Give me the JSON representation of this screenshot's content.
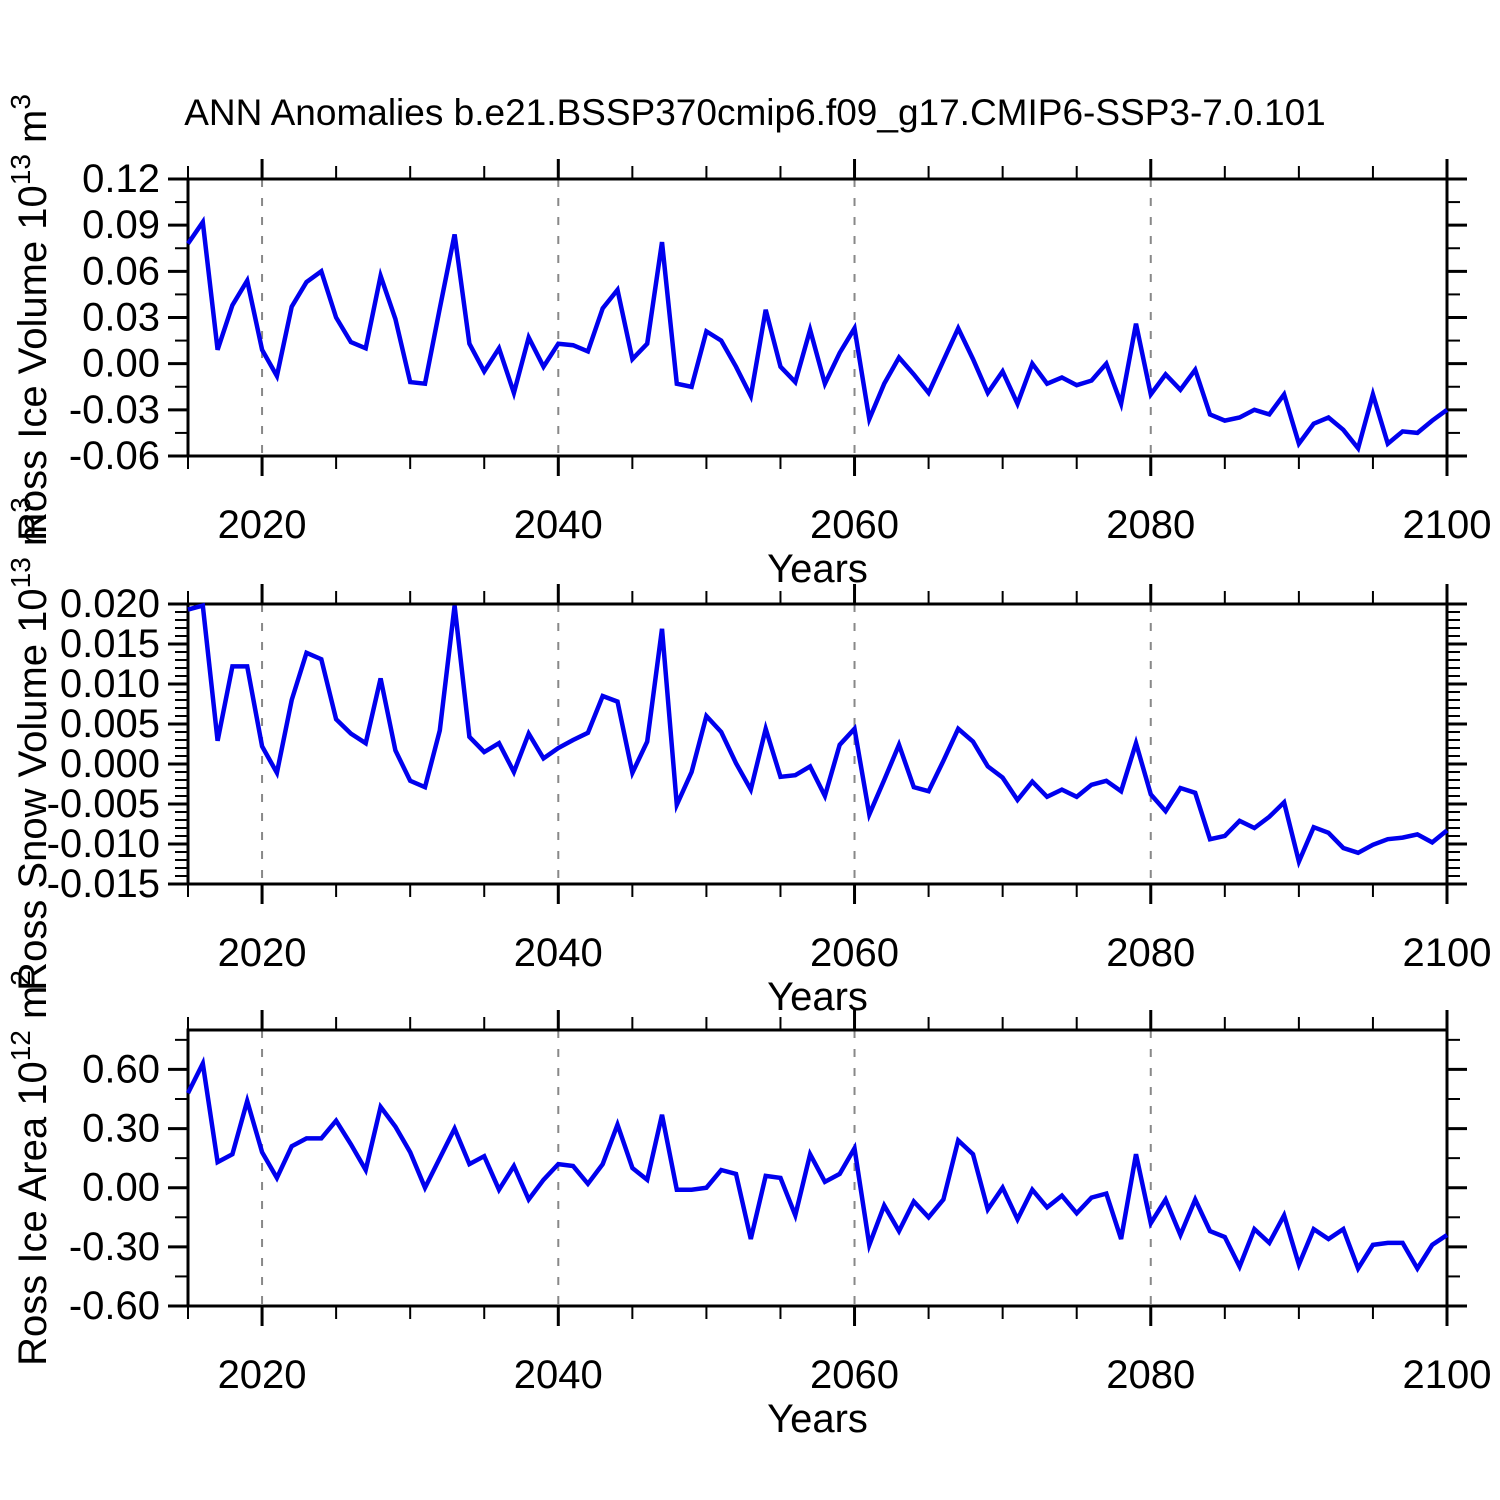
{
  "title": "ANN Anomalies b.e21.BSSP370cmip6.f09_g17.CMIP6-SSP3-7.0.101",
  "colors": {
    "line": "#0000ee",
    "grid": "#888888",
    "frame": "#000000",
    "background": "#ffffff"
  },
  "x_axis": {
    "label": "Years",
    "tick_labels": [
      "2020",
      "2040",
      "2060",
      "2080",
      "2100"
    ],
    "major_ticks": [
      2020,
      2040,
      2060,
      2080,
      2100
    ],
    "minor_step": 5,
    "gridline_years": [
      2020,
      2040,
      2060,
      2080
    ],
    "range": [
      2015,
      2100
    ]
  },
  "chart_data": [
    {
      "type": "line",
      "ylabel": "Ross Ice Volume 10^13 m^3",
      "ylabel_parts": {
        "base": "Ross Ice Volume 10",
        "sup1": "13",
        "mid": " m",
        "sup2": "3"
      },
      "ylim": [
        -0.06,
        0.12
      ],
      "ytick_values": [
        0.12,
        0.09,
        0.06,
        0.03,
        0.0,
        -0.03,
        -0.06
      ],
      "ytick_labels": [
        "0.12",
        "0.09",
        "0.06",
        "0.03",
        "0.00",
        "-0.03",
        "-0.06"
      ],
      "yminor_step": 0.015,
      "xlabel": "Years",
      "x_range": [
        2015,
        2100
      ],
      "x_step": 1,
      "values": [
        0.078,
        0.092,
        0.009,
        0.038,
        0.054,
        0.009,
        -0.008,
        0.037,
        0.053,
        0.06,
        0.03,
        0.014,
        0.01,
        0.057,
        0.029,
        -0.012,
        -0.013,
        0.036,
        0.084,
        0.013,
        -0.005,
        0.01,
        -0.019,
        0.017,
        -0.002,
        0.013,
        0.012,
        0.008,
        0.036,
        0.048,
        0.003,
        0.013,
        0.079,
        -0.013,
        -0.015,
        0.021,
        0.015,
        -0.002,
        -0.021,
        0.035,
        -0.002,
        -0.012,
        0.022,
        -0.013,
        0.007,
        0.023,
        -0.036,
        -0.013,
        0.004,
        -0.007,
        -0.019,
        0.002,
        0.023,
        0.003,
        -0.019,
        -0.005,
        -0.026,
        0.0,
        -0.013,
        -0.009,
        -0.014,
        -0.011,
        0.0,
        -0.026,
        0.026,
        -0.02,
        -0.007,
        -0.017,
        -0.004,
        -0.033,
        -0.037,
        -0.035,
        -0.03,
        -0.033,
        -0.02,
        -0.052,
        -0.039,
        -0.035,
        -0.043,
        -0.055,
        -0.02,
        -0.052,
        -0.044,
        -0.045,
        -0.037,
        -0.03
      ]
    },
    {
      "type": "line",
      "ylabel": "Ross Snow Volume 10^13 m^3",
      "ylabel_parts": {
        "base": "Ross Snow Volume 10",
        "sup1": "13",
        "mid": " m",
        "sup2": "3"
      },
      "ylim": [
        -0.015,
        0.02
      ],
      "ytick_values": [
        0.02,
        0.015,
        0.01,
        0.005,
        0.0,
        -0.005,
        -0.01,
        -0.015
      ],
      "ytick_labels": [
        "0.020",
        "0.015",
        "0.010",
        "0.005",
        "0.000",
        "-0.005",
        "-0.010",
        "-0.015"
      ],
      "yminor_step": 0.001,
      "xlabel": "Years",
      "x_range": [
        2015,
        2100
      ],
      "x_step": 1,
      "values": [
        0.0193,
        0.0198,
        0.0029,
        0.0122,
        0.0122,
        0.0022,
        -0.0011,
        0.008,
        0.0139,
        0.0131,
        0.0056,
        0.0038,
        0.0026,
        0.0107,
        0.0017,
        -0.0021,
        -0.0029,
        0.0042,
        0.0198,
        0.0034,
        0.0015,
        0.0026,
        -0.001,
        0.0038,
        0.0007,
        0.002,
        0.003,
        0.0039,
        0.0085,
        0.0078,
        -0.0011,
        0.0028,
        0.0169,
        -0.0051,
        -0.001,
        0.006,
        0.004,
        0.0001,
        -0.0032,
        0.0044,
        -0.0016,
        -0.0014,
        -0.0003,
        -0.004,
        0.0024,
        0.0044,
        -0.0063,
        -0.002,
        0.0024,
        -0.0029,
        -0.0034,
        0.0004,
        0.0044,
        0.0028,
        -0.0003,
        -0.0017,
        -0.0045,
        -0.0022,
        -0.0041,
        -0.0032,
        -0.0041,
        -0.0026,
        -0.0021,
        -0.0034,
        0.0026,
        -0.0038,
        -0.0059,
        -0.003,
        -0.0036,
        -0.0094,
        -0.009,
        -0.0071,
        -0.008,
        -0.0066,
        -0.0048,
        -0.0122,
        -0.0079,
        -0.0086,
        -0.0105,
        -0.0111,
        -0.0101,
        -0.0094,
        -0.0092,
        -0.0088,
        -0.0098,
        -0.0083
      ]
    },
    {
      "type": "line",
      "ylabel": "Ross Ice Area 10^12 m^2",
      "ylabel_parts": {
        "base": "Ross Ice Area 10",
        "sup1": "12",
        "mid": " m",
        "sup2": "2"
      },
      "ylim": [
        -0.6,
        0.8
      ],
      "ytick_values": [
        0.6,
        0.3,
        0.0,
        -0.3,
        -0.6
      ],
      "ytick_labels": [
        "0.60",
        "0.30",
        "0.00",
        "-0.30",
        "-0.60"
      ],
      "yminor_step": 0.15,
      "xlabel": "Years",
      "x_range": [
        2015,
        2100
      ],
      "x_step": 1,
      "values": [
        0.48,
        0.63,
        0.13,
        0.17,
        0.44,
        0.18,
        0.05,
        0.21,
        0.25,
        0.25,
        0.34,
        0.22,
        0.09,
        0.41,
        0.31,
        0.18,
        0.0,
        0.15,
        0.3,
        0.12,
        0.16,
        -0.01,
        0.11,
        -0.06,
        0.04,
        0.12,
        0.11,
        0.02,
        0.12,
        0.32,
        0.1,
        0.04,
        0.37,
        -0.01,
        -0.01,
        0.0,
        0.09,
        0.07,
        -0.26,
        0.06,
        0.05,
        -0.14,
        0.17,
        0.03,
        0.07,
        0.2,
        -0.29,
        -0.09,
        -0.22,
        -0.07,
        -0.15,
        -0.06,
        0.24,
        0.17,
        -0.11,
        0.0,
        -0.16,
        -0.01,
        -0.1,
        -0.04,
        -0.13,
        -0.05,
        -0.03,
        -0.26,
        0.17,
        -0.18,
        -0.06,
        -0.24,
        -0.06,
        -0.22,
        -0.25,
        -0.4,
        -0.21,
        -0.28,
        -0.14,
        -0.39,
        -0.21,
        -0.26,
        -0.21,
        -0.41,
        -0.29,
        -0.28,
        -0.28,
        -0.41,
        -0.29,
        -0.24
      ]
    }
  ]
}
